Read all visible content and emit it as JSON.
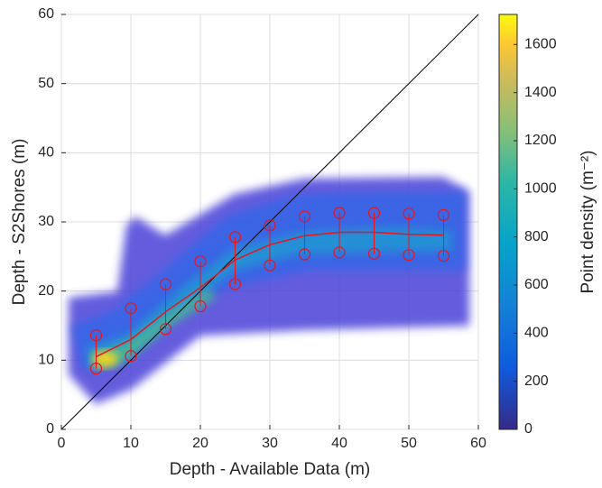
{
  "chart_data": {
    "type": "density-scatter",
    "xlabel": "Depth - Available Data (m)",
    "ylabel": "Depth - S2Shores (m)",
    "xlim": [
      0,
      60
    ],
    "xticks": [
      0,
      10,
      20,
      30,
      40,
      50,
      60
    ],
    "ylim": [
      0,
      60
    ],
    "yticks": [
      0,
      10,
      20,
      30,
      40,
      50,
      60
    ],
    "grid": true,
    "x": [
      5,
      10,
      15,
      20,
      25,
      30,
      35,
      40,
      45,
      50,
      55
    ],
    "series": [
      {
        "name": "mean",
        "color": "#e8141c",
        "values": [
          10.5,
          13,
          17,
          20.5,
          24.5,
          26.7,
          28,
          28.5,
          28.5,
          28.2,
          28.1
        ]
      },
      {
        "name": "upper",
        "color": "#e8141c",
        "values": [
          13.6,
          17.5,
          21,
          24.3,
          27.8,
          29.5,
          30.8,
          31.3,
          31.3,
          31.2,
          31
        ]
      },
      {
        "name": "lower",
        "color": "#e8141c",
        "values": [
          8.8,
          10.6,
          14.5,
          17.8,
          21,
          23.7,
          25.3,
          25.6,
          25.4,
          25.2,
          25.1
        ]
      }
    ],
    "colorbar": {
      "label": "Point density (m⁻²)",
      "lim": [
        0,
        1725
      ],
      "ticks": [
        0,
        200,
        400,
        600,
        800,
        1000,
        1200,
        1400,
        1600
      ]
    }
  }
}
